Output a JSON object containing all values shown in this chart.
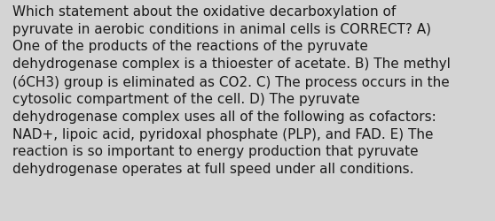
{
  "lines": [
    "Which statement about the oxidative decarboxylation of",
    "pyruvate in aerobic conditions in animal cells is CORRECT? A)",
    "One of the products of the reactions of the pyruvate",
    "dehydrogenase complex is a thioester of acetate. B) The methyl",
    "(óCH3) group is eliminated as CO2. C) The process occurs in the",
    "cytosolic compartment of the cell. D) The pyruvate",
    "dehydrogenase complex uses all of the following as cofactors:",
    "NAD+, lipoic acid, pyridoxal phosphate (PLP), and FAD. E) The",
    "reaction is so important to energy production that pyruvate",
    "dehydrogenase operates at full speed under all conditions."
  ],
  "background_color": "#d4d4d4",
  "text_color": "#1a1a1a",
  "font_size": 11.0,
  "fig_width": 5.58,
  "fig_height": 2.51,
  "dpi": 100
}
